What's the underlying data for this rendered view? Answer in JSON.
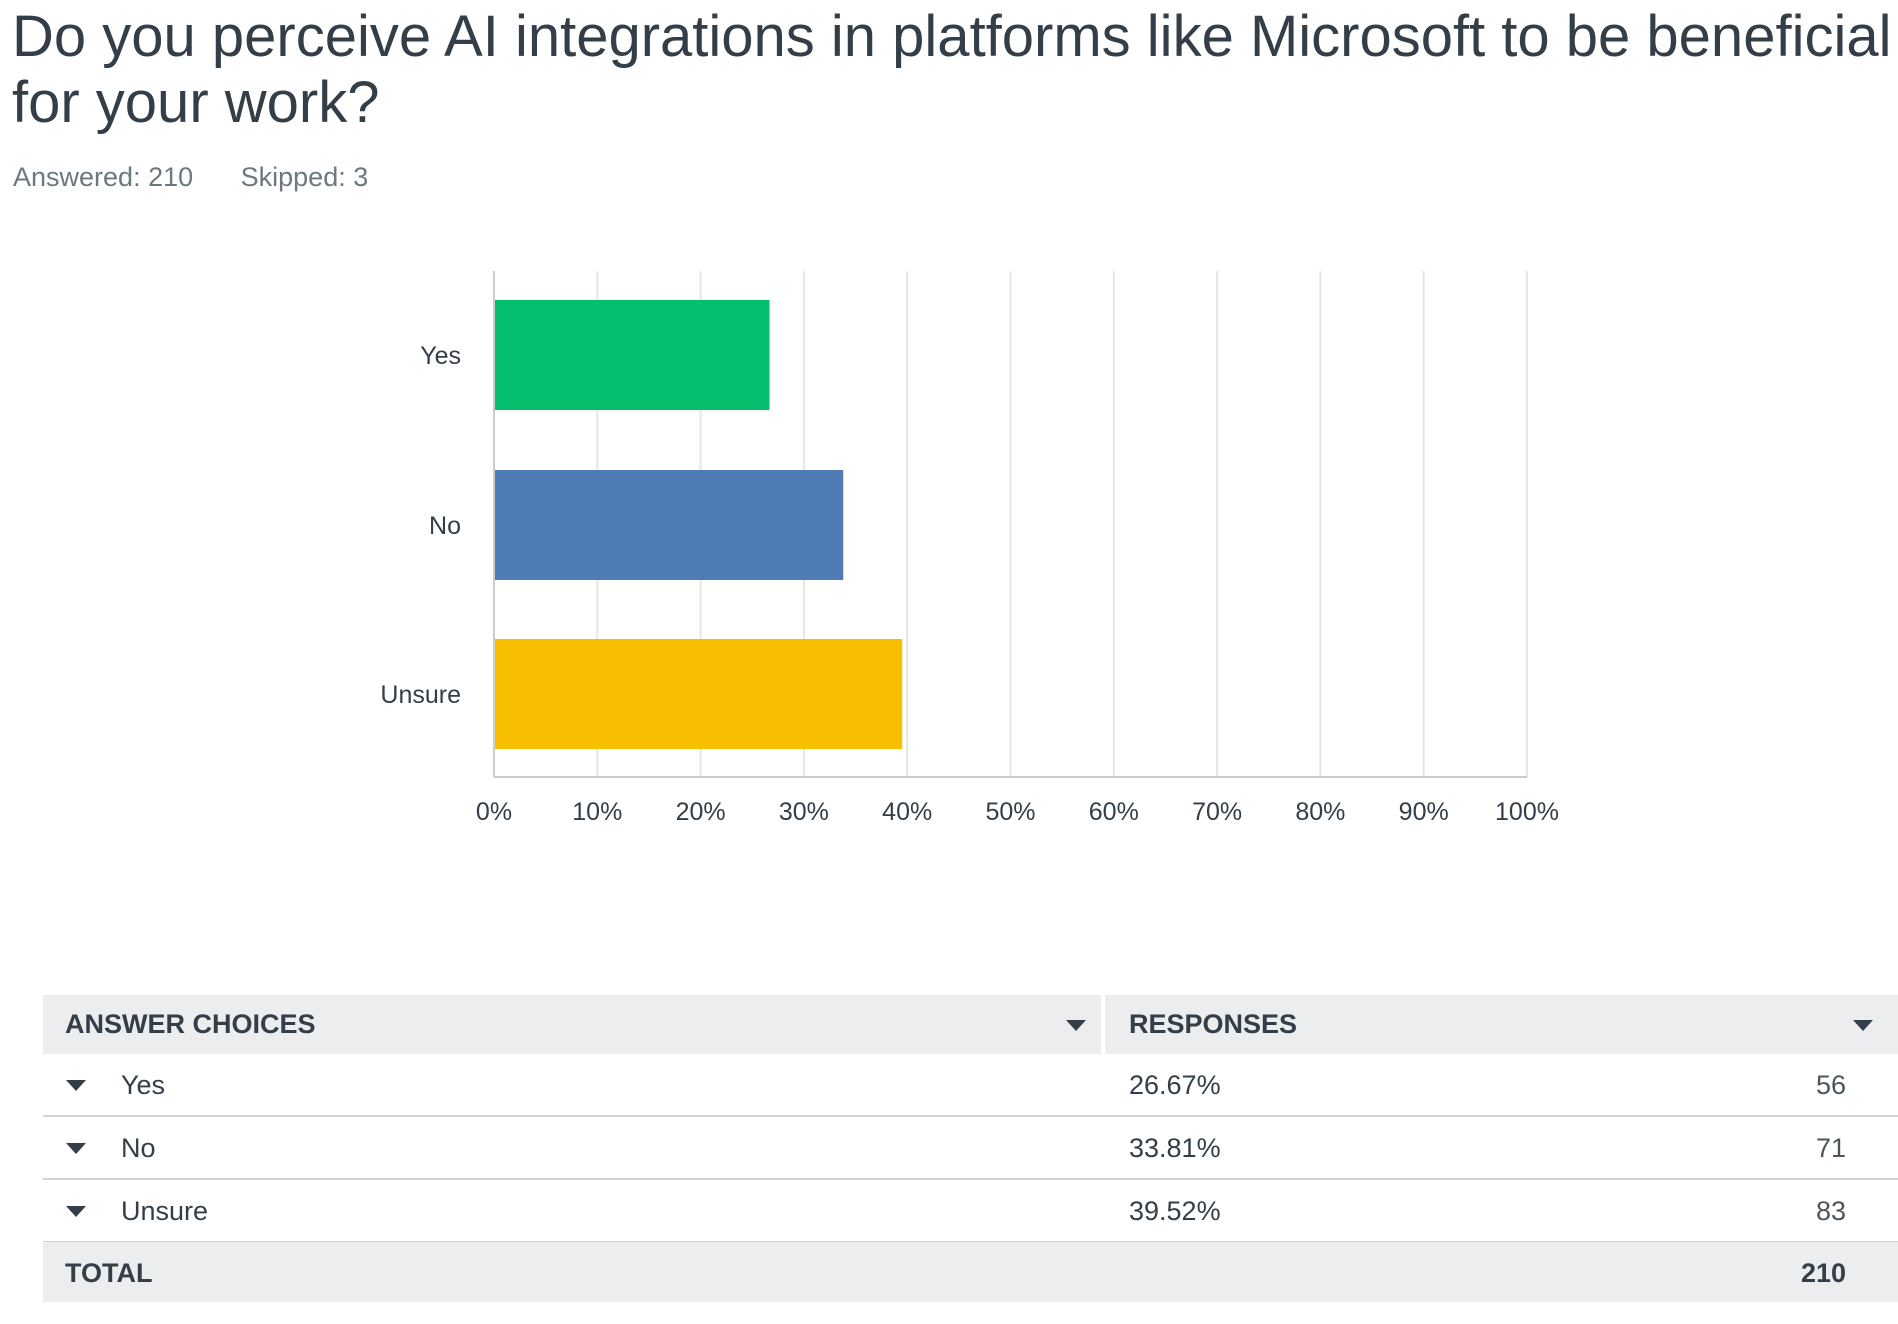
{
  "question": {
    "title": "Do you perceive AI integrations in platforms like Microsoft to be beneficial for your work?"
  },
  "stats": {
    "answered": "Answered: 210",
    "skipped": "Skipped: 3"
  },
  "colors": {
    "yes": "#04bf6e",
    "no": "#507cb6",
    "unsure": "#f7bf00",
    "grid": "#e4e7e8",
    "axis": "#c9cdd0"
  },
  "chart_data": {
    "type": "bar",
    "orientation": "horizontal",
    "categories": [
      "Yes",
      "No",
      "Unsure"
    ],
    "values": [
      26.67,
      33.81,
      39.52
    ],
    "xlim": [
      0,
      100
    ],
    "xticks": [
      "0%",
      "10%",
      "20%",
      "30%",
      "40%",
      "50%",
      "60%",
      "70%",
      "80%",
      "90%",
      "100%"
    ],
    "grid": true,
    "title": "",
    "xlabel": "",
    "ylabel": ""
  },
  "table": {
    "headers": {
      "choices": "ANSWER CHOICES",
      "responses": "RESPONSES"
    },
    "rows": [
      {
        "label": "Yes",
        "percent": "26.67%",
        "count": "56"
      },
      {
        "label": "No",
        "percent": "33.81%",
        "count": "71"
      },
      {
        "label": "Unsure",
        "percent": "39.52%",
        "count": "83"
      }
    ],
    "total": {
      "label": "TOTAL",
      "count": "210"
    }
  }
}
